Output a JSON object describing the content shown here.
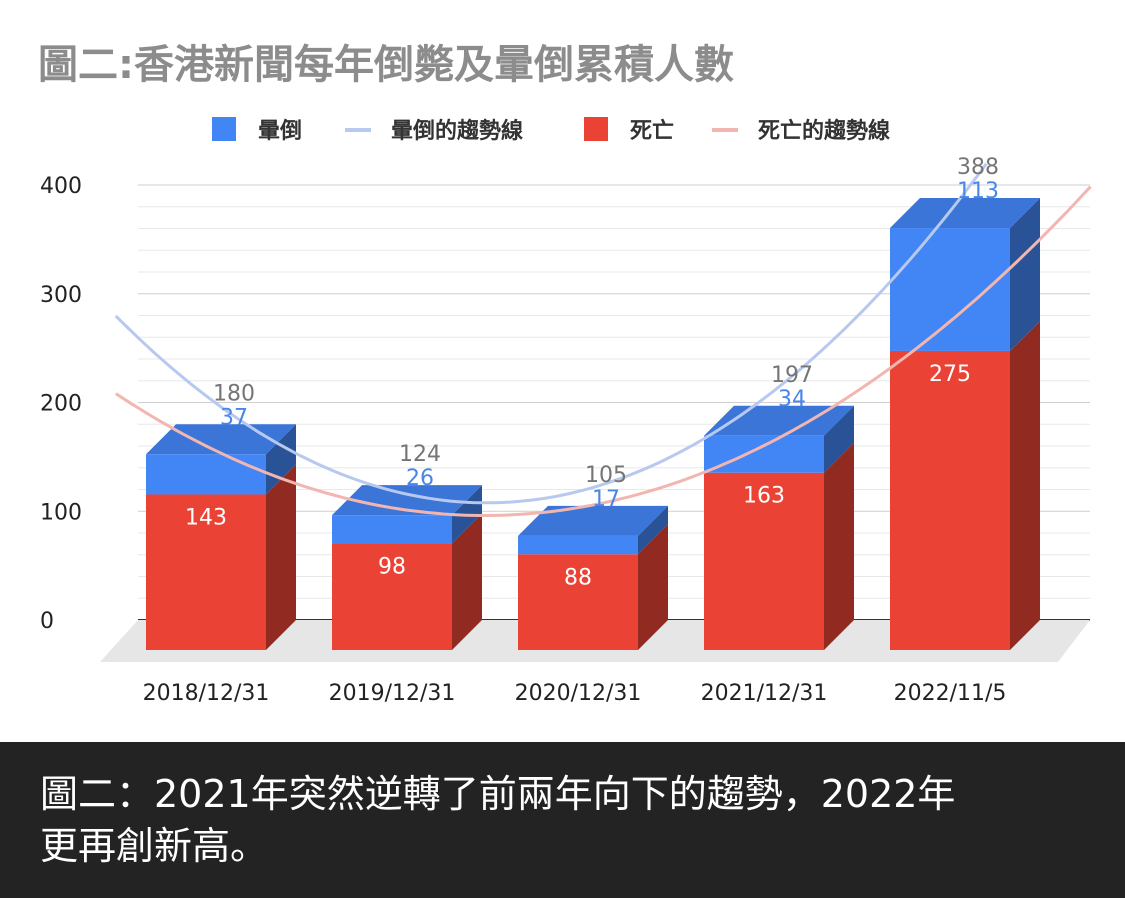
{
  "chart_data": {
    "type": "bar",
    "title": "圖二:香港新聞每年倒斃及暈倒累積人數",
    "categories": [
      "2018/12/31",
      "2019/12/31",
      "2020/12/31",
      "2021/12/31",
      "2022/11/5"
    ],
    "series": [
      {
        "name": "死亡",
        "values": [
          143,
          98,
          88,
          163,
          275
        ],
        "color": "#ea4335"
      },
      {
        "name": "暈倒",
        "values": [
          37,
          26,
          17,
          34,
          113
        ],
        "color": "#4285f4"
      }
    ],
    "totals": [
      180,
      124,
      105,
      197,
      388
    ],
    "trendlines": [
      {
        "name": "暈倒的趨勢線",
        "color": "#b7c9ef"
      },
      {
        "name": "死亡的趨勢線",
        "color": "#f2b6b1"
      }
    ],
    "legend": [
      "暈倒",
      "暈倒的趨勢線",
      "死亡",
      "死亡的趨勢線"
    ],
    "stacked": true,
    "three_d": true,
    "ylim": [
      0,
      400
    ],
    "yticks": [
      0,
      100,
      200,
      300,
      400
    ],
    "grid": true,
    "legend_position": "top",
    "xlabel": "",
    "ylabel": ""
  },
  "caption": {
    "line1": "圖二：2021年突然逆轉了前兩年向下的趨勢，2022年",
    "line2": "更再創新高。"
  }
}
